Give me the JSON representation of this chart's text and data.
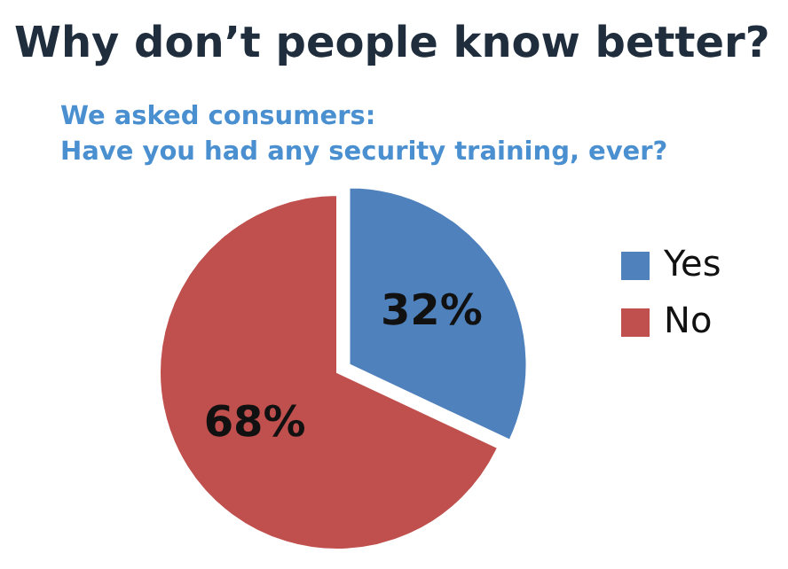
{
  "chart_data": {
    "type": "pie",
    "title": "Why don’t people know better?",
    "subtitle": "We asked consumers: Have you had any security training, ever?",
    "categories": [
      "Yes",
      "No"
    ],
    "values": [
      32,
      68
    ],
    "colors": [
      "#4f81bd",
      "#c0504d"
    ],
    "value_labels": [
      "32%",
      "68%"
    ],
    "legend": "right"
  }
}
